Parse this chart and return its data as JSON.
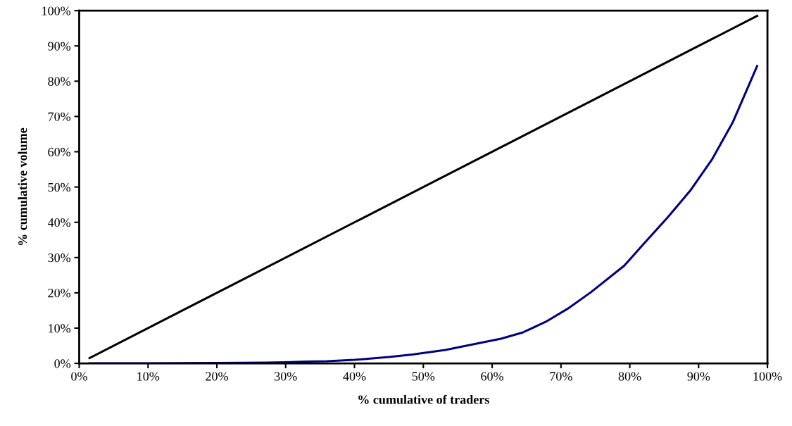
{
  "chart_data": {
    "type": "line",
    "xlabel": "% cumulative of traders",
    "ylabel": "% cumulative volume",
    "xlim": [
      0,
      100
    ],
    "ylim": [
      0,
      100
    ],
    "xticks": [
      {
        "value": 0,
        "label": "0%"
      },
      {
        "value": 10,
        "label": "10%"
      },
      {
        "value": 20,
        "label": "20%"
      },
      {
        "value": 30,
        "label": "30%"
      },
      {
        "value": 40,
        "label": "40%"
      },
      {
        "value": 50,
        "label": "50%"
      },
      {
        "value": 60,
        "label": "60%"
      },
      {
        "value": 70,
        "label": "70%"
      },
      {
        "value": 80,
        "label": "80%"
      },
      {
        "value": 90,
        "label": "90%"
      },
      {
        "value": 100,
        "label": "100%"
      }
    ],
    "yticks": [
      {
        "value": 0,
        "label": "0%"
      },
      {
        "value": 10,
        "label": "10%"
      },
      {
        "value": 20,
        "label": "20%"
      },
      {
        "value": 30,
        "label": "30%"
      },
      {
        "value": 40,
        "label": "40%"
      },
      {
        "value": 50,
        "label": "50%"
      },
      {
        "value": 60,
        "label": "60%"
      },
      {
        "value": 70,
        "label": "70%"
      },
      {
        "value": 80,
        "label": "80%"
      },
      {
        "value": 90,
        "label": "90%"
      },
      {
        "value": 100,
        "label": "100%"
      }
    ],
    "grid": false,
    "legend": false,
    "marker": "none",
    "line_style": "solid",
    "series": [
      {
        "color": "#000000",
        "x": [
          1.5,
          25,
          50,
          75,
          98.5
        ],
        "values": [
          1.5,
          25,
          50,
          75,
          98.5
        ]
      },
      {
        "color": "#000080",
        "x": [
          1.5,
          10,
          20,
          27,
          30,
          33,
          36,
          40,
          45,
          48.4,
          53.2,
          58,
          61.3,
          64.5,
          67.8,
          70.9,
          74.3,
          79.2,
          82.3,
          85.5,
          88.8,
          92,
          95,
          98.5
        ],
        "values": [
          0,
          0,
          0.1,
          0.2,
          0.3,
          0.5,
          0.6,
          1.0,
          1.8,
          2.5,
          3.8,
          5.7,
          7.0,
          8.8,
          11.8,
          15.4,
          20.1,
          27.7,
          34.5,
          41.4,
          49.0,
          58,
          68.5,
          84.3
        ]
      }
    ]
  }
}
